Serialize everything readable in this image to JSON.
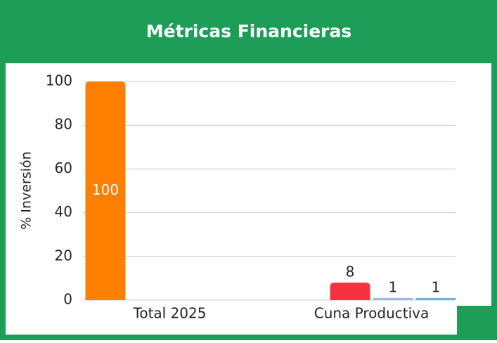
{
  "chart_data": {
    "type": "bar",
    "title": "Métricas Financieras",
    "categories": [
      "Total 2025",
      "Cuna Productiva"
    ],
    "series": [
      {
        "color": "#ff7f00",
        "values": [
          100,
          null
        ]
      },
      {
        "color": "#f5333f",
        "values": [
          null,
          8
        ]
      },
      {
        "color": "#a3b5e8",
        "values": [
          null,
          1
        ]
      },
      {
        "color": "#6fb3e0",
        "values": [
          null,
          1
        ]
      }
    ],
    "ylabel": "% Inversión",
    "ylim": [
      0,
      100
    ],
    "yticks": [
      0,
      20,
      40,
      60,
      80,
      100
    ],
    "grid": true
  }
}
